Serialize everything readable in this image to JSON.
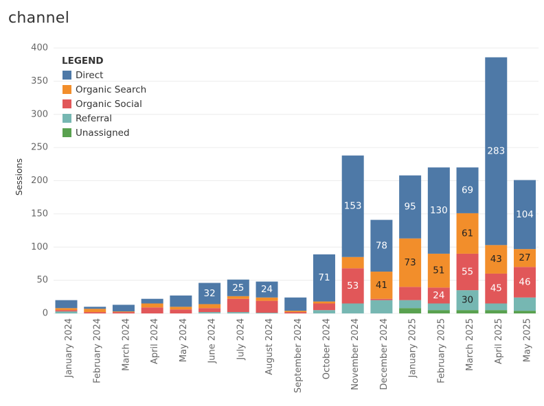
{
  "title": "channel",
  "chart_data": {
    "type": "bar",
    "stacked": true,
    "title": "channel",
    "xlabel": "",
    "ylabel": "Sessions",
    "ylim": [
      0,
      400
    ],
    "yticks": [
      0,
      50,
      100,
      150,
      200,
      250,
      300,
      350,
      400
    ],
    "grid": true,
    "legend": {
      "title": "LEGEND",
      "placement": "top-left"
    },
    "categories": [
      "January 2024",
      "February 2024",
      "March 2024",
      "April 2024",
      "May 2024",
      "June 2024",
      "July 2024",
      "August 2024",
      "September 2024",
      "October 2024",
      "November 2024",
      "December 2024",
      "January 2025",
      "February 2025",
      "March 2025",
      "April 2025",
      "May 2025"
    ],
    "series": [
      {
        "name": "Unassigned",
        "color": "#59A14F",
        "values": [
          0,
          0,
          0,
          0,
          0,
          0,
          0,
          0,
          0,
          0,
          0,
          0,
          8,
          5,
          5,
          5,
          4
        ]
      },
      {
        "name": "Referral",
        "color": "#76B7B2",
        "values": [
          3,
          0,
          0,
          0,
          0,
          2,
          2,
          1,
          0,
          5,
          15,
          20,
          12,
          10,
          30,
          10,
          20
        ]
      },
      {
        "name": "Organic Social",
        "color": "#E15759",
        "values": [
          2,
          2,
          2,
          9,
          6,
          6,
          20,
          18,
          2,
          10,
          53,
          2,
          20,
          24,
          55,
          45,
          46
        ]
      },
      {
        "name": "Organic Search",
        "color": "#F28E2B",
        "values": [
          3,
          5,
          1,
          6,
          4,
          6,
          4,
          5,
          2,
          3,
          17,
          41,
          73,
          51,
          61,
          43,
          27
        ]
      },
      {
        "name": "Direct",
        "color": "#4E79A7",
        "values": [
          12,
          3,
          10,
          7,
          17,
          32,
          25,
          24,
          20,
          71,
          153,
          78,
          95,
          130,
          69,
          283,
          104
        ]
      }
    ],
    "data_labels": {
      "Direct": [
        null,
        null,
        null,
        null,
        null,
        32,
        25,
        24,
        null,
        71,
        153,
        78,
        95,
        130,
        69,
        283,
        104
      ],
      "Organic Search": [
        null,
        null,
        null,
        null,
        null,
        null,
        null,
        null,
        null,
        null,
        null,
        41,
        73,
        51,
        61,
        43,
        27
      ],
      "Organic Social": [
        null,
        null,
        null,
        null,
        null,
        null,
        null,
        null,
        null,
        null,
        53,
        null,
        null,
        24,
        55,
        45,
        46
      ],
      "Referral": [
        null,
        null,
        null,
        null,
        null,
        null,
        null,
        null,
        null,
        null,
        null,
        null,
        null,
        null,
        30,
        null,
        null
      ]
    },
    "legend_order": [
      "Direct",
      "Organic Search",
      "Organic Social",
      "Referral",
      "Unassigned"
    ],
    "label_colors": {
      "Direct": "#ffffff",
      "Organic Search": "#222222",
      "Organic Social": "#ffffff",
      "Referral": "#222222"
    }
  }
}
